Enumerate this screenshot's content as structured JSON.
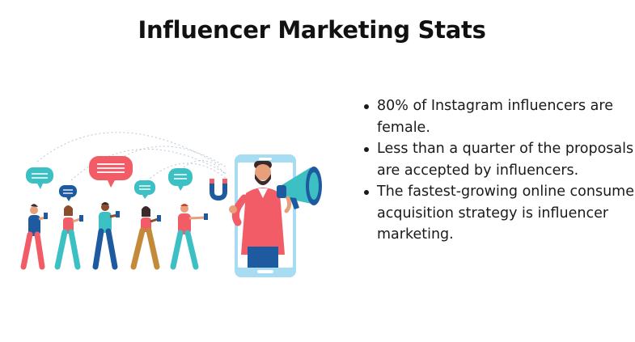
{
  "title": "Influencer Marketing Stats",
  "bullets": [
    "80%  of Instagram influencers are female.",
    "Less than a quarter of the proposals are accepted by influencers.",
    "The fastest-growing online consumer acquisition strategy is influencer marketing."
  ],
  "colors": {
    "coral": "#f25c66",
    "teal": "#3cc0c4",
    "navy": "#1e5aa0",
    "light_blue": "#9fd8f0",
    "skin": "#e8a07a",
    "dark_skin": "#8a4e2e",
    "hair": "#3a2a2a",
    "phone_frame": "#a8dcf2"
  },
  "illustration_icons": [
    "speech-bubble-icon",
    "magnet-icon",
    "megaphone-icon",
    "smartphone-icon",
    "person-icon"
  ]
}
